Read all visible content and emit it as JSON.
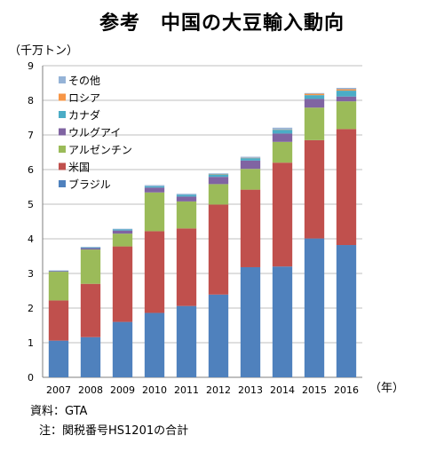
{
  "title": "参考　中国の大豆輸入動向",
  "y_unit": "（千万トン）",
  "x_unit": "（年）",
  "source": "資料：GTA",
  "note": "注：関税番号HS1201の合計",
  "chart_data": {
    "type": "bar",
    "stacked": true,
    "title": "参考　中国の大豆輸入動向",
    "ylabel": "（千万トン）",
    "xlabel": "（年）",
    "ylim": [
      0,
      9
    ],
    "yticks": [
      0,
      1,
      2,
      3,
      4,
      5,
      6,
      7,
      8,
      9
    ],
    "grid": true,
    "legend_position": "top-left",
    "categories": [
      "2007",
      "2008",
      "2009",
      "2010",
      "2011",
      "2012",
      "2013",
      "2014",
      "2015",
      "2016"
    ],
    "series": [
      {
        "name": "ブラジル",
        "color": "#4F81BD",
        "values": [
          1.06,
          1.16,
          1.6,
          1.86,
          2.06,
          2.39,
          3.18,
          3.2,
          4.01,
          3.82
        ]
      },
      {
        "name": "米国",
        "color": "#C0504D",
        "values": [
          1.16,
          1.54,
          2.18,
          2.36,
          2.24,
          2.6,
          2.24,
          3.0,
          2.84,
          3.35
        ]
      },
      {
        "name": "アルゼンチン",
        "color": "#9BBB59",
        "values": [
          0.83,
          0.99,
          0.37,
          1.12,
          0.78,
          0.59,
          0.6,
          0.6,
          0.94,
          0.8
        ]
      },
      {
        "name": "ウルグアイ",
        "color": "#8064A2",
        "values": [
          0.02,
          0.04,
          0.09,
          0.14,
          0.14,
          0.21,
          0.24,
          0.24,
          0.25,
          0.14
        ]
      },
      {
        "name": "カナダ",
        "color": "#4BACC6",
        "values": [
          0.01,
          0.02,
          0.03,
          0.04,
          0.05,
          0.07,
          0.07,
          0.11,
          0.11,
          0.17
        ]
      },
      {
        "name": "ロシア",
        "color": "#F79646",
        "values": [
          0.0,
          0.0,
          0.0,
          0.0,
          0.0,
          0.01,
          0.01,
          0.01,
          0.04,
          0.04
        ]
      },
      {
        "name": "その他",
        "color": "#95B3D7",
        "values": [
          0.01,
          0.02,
          0.02,
          0.03,
          0.03,
          0.02,
          0.03,
          0.05,
          0.02,
          0.04
        ]
      }
    ]
  }
}
